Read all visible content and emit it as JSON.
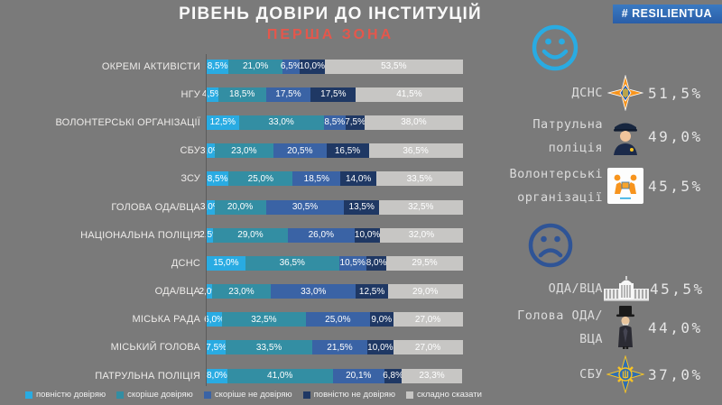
{
  "header": {
    "title": "РІВЕНЬ ДОВІРИ ДО ІНСТИТУЦІЙ",
    "subtitle": "ПЕРША ЗОНА",
    "badge": {
      "hash": "#",
      "name": "RESILIENT",
      "suffix": "UA"
    }
  },
  "colors": {
    "background": "#7a7a7a",
    "accent_red": "#e4574c",
    "badge_blue": "#2e6db4",
    "happy_face_blue": "#29abe2",
    "sad_face_blue": "#2f5496"
  },
  "chart_data": {
    "type": "bar",
    "orientation": "horizontal",
    "stacked": true,
    "grid": false,
    "legend_position": "bottom",
    "xlim": [
      0,
      100
    ],
    "value_suffix": "%",
    "decimal_separator": ",",
    "categories": [
      "ОКРЕМІ АКТИВІСТИ",
      "НГУ",
      "ВОЛОНТЕРСЬКІ ОРГАНІЗАЦІЇ",
      "СБУ",
      "ЗСУ",
      "ГОЛОВА ОДА/ВЦА",
      "НАЦІОНАЛЬНА ПОЛІЦІЯ",
      "ДСНС",
      "ОДА/ВЦА",
      "МІСЬКА РАДА",
      "МІСЬКИЙ ГОЛОВА",
      "ПАТРУЛЬНА ПОЛІЦІЯ"
    ],
    "series": [
      {
        "name": "повністю довіряю",
        "color": "#29abe2",
        "values": [
          8.5,
          4.5,
          12.5,
          3.0,
          8.5,
          3.0,
          2.5,
          15.0,
          2.0,
          6.0,
          7.5,
          8.0
        ]
      },
      {
        "name": "скоріше довіряю",
        "color": "#338ea3",
        "values": [
          21.0,
          18.5,
          33.0,
          23.0,
          25.0,
          20.0,
          29.0,
          36.5,
          23.0,
          32.5,
          33.5,
          41.0
        ]
      },
      {
        "name": "скоріше не довіряю",
        "color": "#3a63a5",
        "values": [
          6.5,
          17.5,
          8.5,
          20.5,
          18.5,
          30.5,
          26.0,
          10.5,
          33.0,
          25.0,
          21.5,
          20.1
        ]
      },
      {
        "name": "повністю не довіряю",
        "color": "#1f3864",
        "values": [
          10.0,
          17.5,
          7.5,
          16.5,
          14.0,
          13.5,
          10.0,
          8.0,
          12.5,
          9.0,
          10.0,
          6.8
        ]
      },
      {
        "name": "складно сказати",
        "color": "#c7c6c4",
        "values": [
          53.5,
          41.5,
          38.0,
          36.5,
          33.5,
          32.5,
          32.0,
          29.5,
          29.0,
          27.0,
          27.0,
          23.3
        ]
      }
    ]
  },
  "summary": {
    "happy": {
      "icon": "happy-face",
      "items": [
        {
          "label": "ДСНС",
          "icon": "dsns-badge",
          "value": "51,5%"
        },
        {
          "label": "Патрульна поліція",
          "icon": "patrol-policeman",
          "value": "49,0%"
        },
        {
          "label": "Волонтерські організації",
          "icon": "volunteers",
          "value": "45,5%"
        }
      ]
    },
    "sad": {
      "icon": "sad-face",
      "items": [
        {
          "label": "ОДА/ВЦА",
          "icon": "government-building",
          "value": "45,5%"
        },
        {
          "label": "Голова ОДА/ВЦА",
          "icon": "governor",
          "value": "44,0%"
        },
        {
          "label": "СБУ",
          "icon": "sbu-badge",
          "value": "37,0%"
        }
      ]
    }
  }
}
